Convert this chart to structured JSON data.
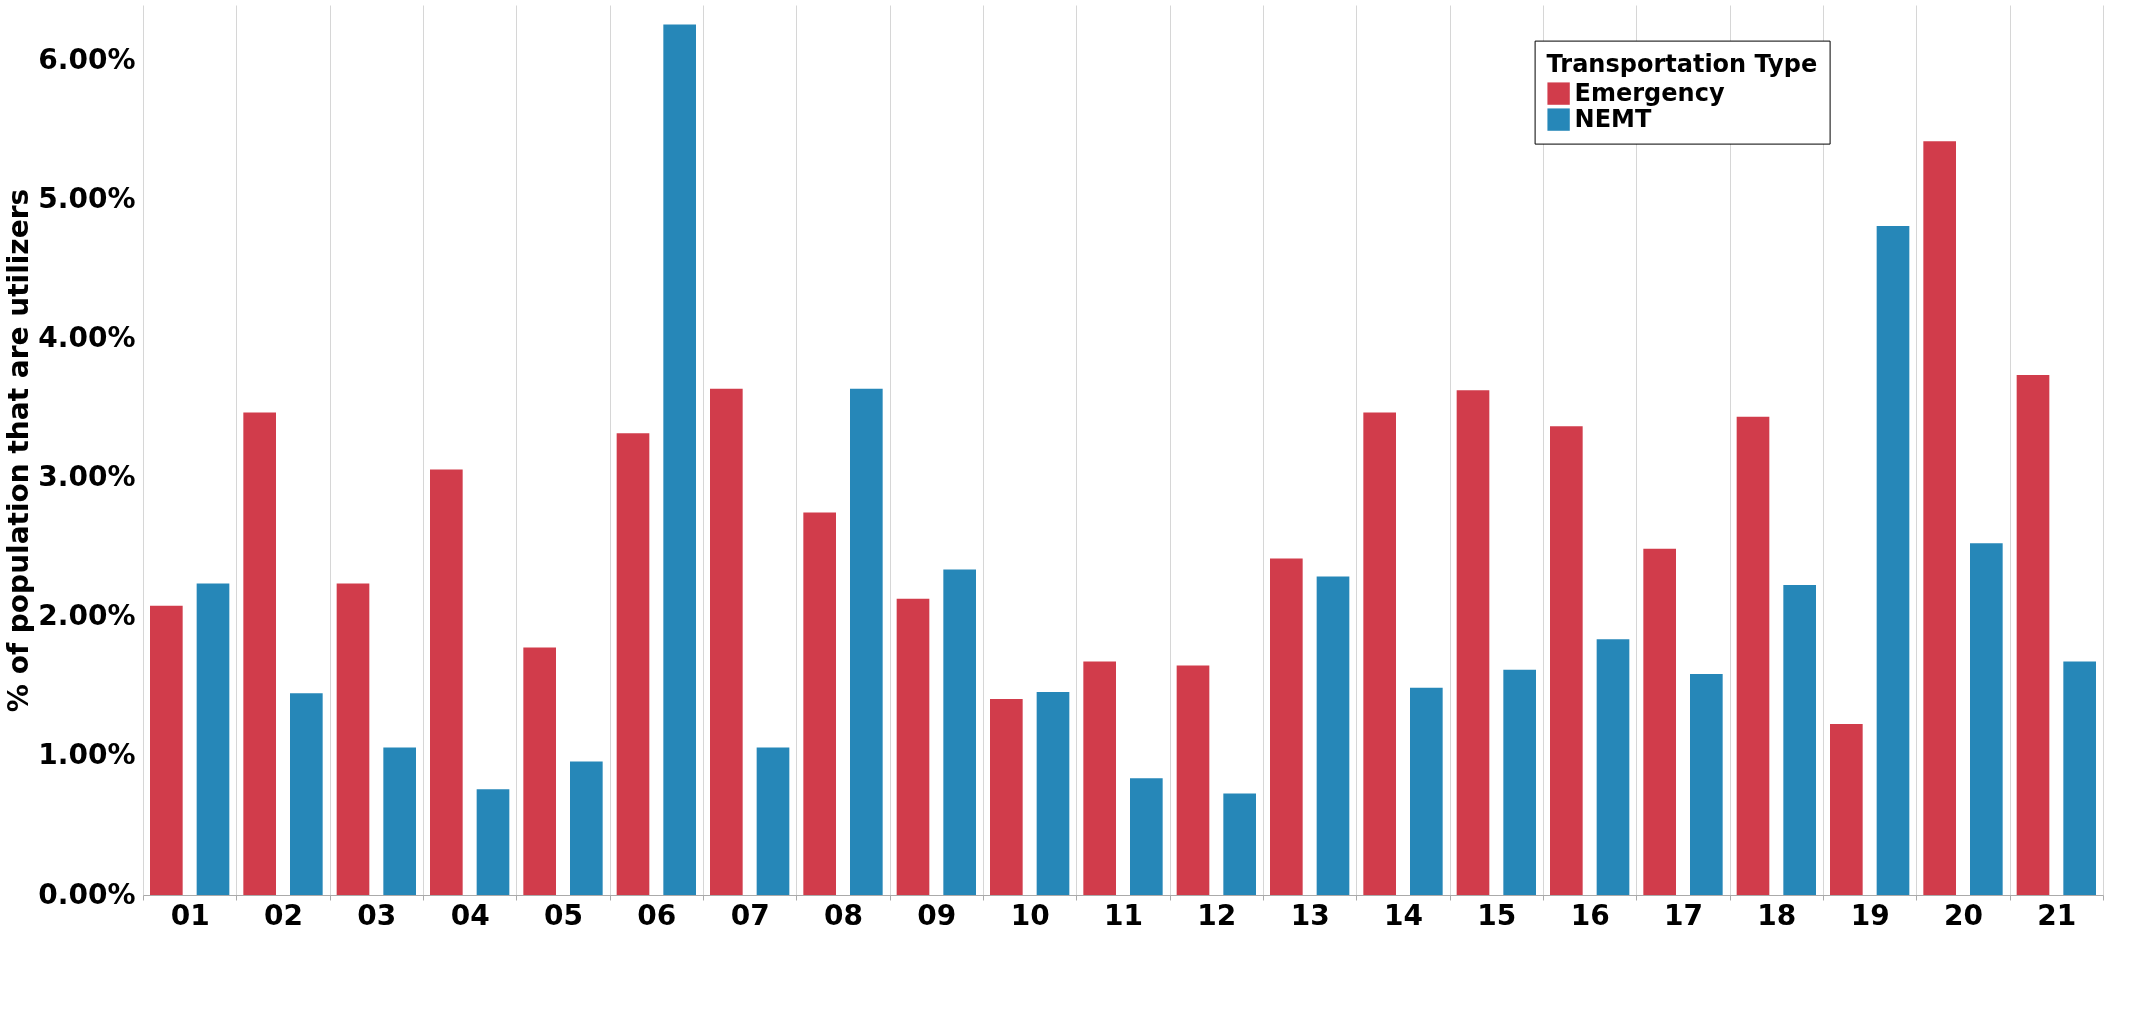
{
  "chart_data": {
    "type": "bar",
    "ylabel": "% of population that are utilizers",
    "legend_title": "Transportation Type",
    "categories": [
      "01",
      "02",
      "03",
      "04",
      "05",
      "06",
      "07",
      "08",
      "09",
      "10",
      "11",
      "12",
      "13",
      "14",
      "15",
      "16",
      "17",
      "18",
      "19",
      "20",
      "21"
    ],
    "series": [
      {
        "name": "Emergency",
        "color": "#d13c4b",
        "values": [
          2.08,
          3.47,
          2.24,
          3.06,
          1.78,
          3.32,
          3.64,
          2.75,
          2.13,
          1.41,
          1.68,
          1.65,
          2.42,
          3.47,
          3.63,
          3.37,
          2.49,
          3.44,
          1.23,
          5.42,
          3.74
        ]
      },
      {
        "name": "NEMT",
        "color": "#2687b8",
        "values": [
          2.24,
          1.45,
          1.06,
          0.76,
          0.96,
          6.26,
          1.06,
          3.64,
          2.34,
          1.46,
          0.84,
          0.73,
          2.29,
          1.49,
          1.62,
          1.84,
          1.59,
          2.23,
          4.81,
          2.53,
          1.68
        ]
      }
    ],
    "ylim": [
      0,
      6.4
    ],
    "yticks": [
      {
        "value": 0,
        "label": "0.00%"
      },
      {
        "value": 1,
        "label": "1.00%"
      },
      {
        "value": 2,
        "label": "2.00%"
      },
      {
        "value": 3,
        "label": "3.00%"
      },
      {
        "value": 4,
        "label": "4.00%"
      },
      {
        "value": 5,
        "label": "5.00%"
      },
      {
        "value": 6,
        "label": "6.00%"
      }
    ],
    "grid": "x",
    "legend": "top right"
  }
}
